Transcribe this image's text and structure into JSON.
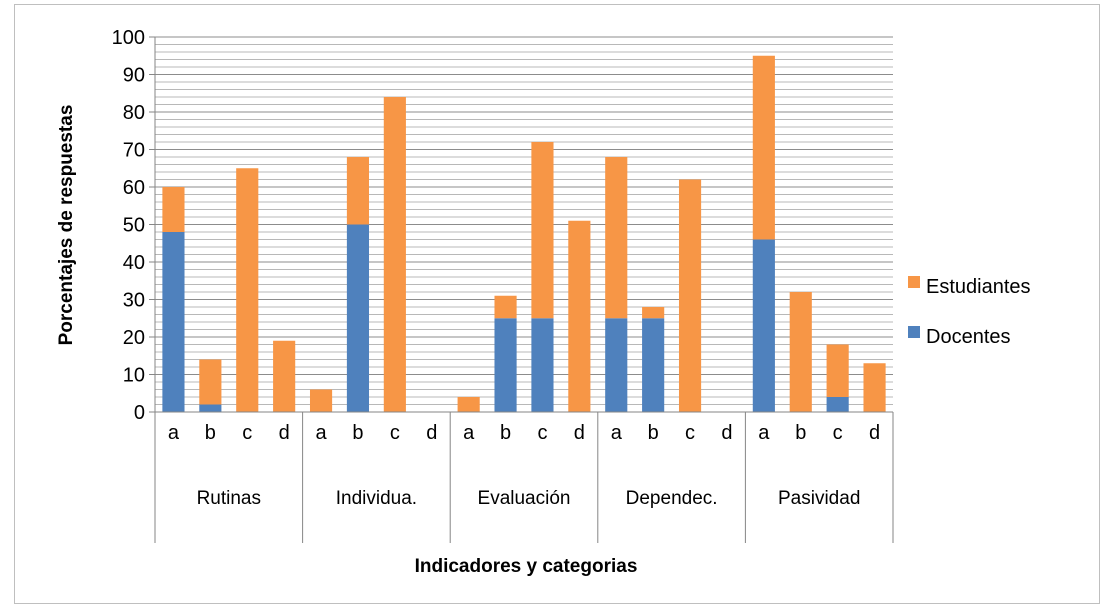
{
  "chart_data": {
    "type": "bar",
    "stacked": true,
    "title": "",
    "xlabel": "Indicadores y categorias",
    "ylabel": "Porcentajes de respuestas",
    "ylim": [
      0,
      100
    ],
    "yticks": [
      0,
      10,
      20,
      30,
      40,
      50,
      60,
      70,
      80,
      90,
      100
    ],
    "groups": [
      {
        "label": "Rutinas",
        "categories": [
          "a",
          "b",
          "c",
          "d"
        ]
      },
      {
        "label": "Individua.",
        "categories": [
          "a",
          "b",
          "c",
          "d"
        ]
      },
      {
        "label": "Evaluación",
        "categories": [
          "a",
          "b",
          "c",
          "d"
        ]
      },
      {
        "label": "Dependec.",
        "categories": [
          "a",
          "b",
          "c",
          "d"
        ]
      },
      {
        "label": "Pasividad",
        "categories": [
          "a",
          "b",
          "c",
          "d"
        ]
      }
    ],
    "series": [
      {
        "name": "Docentes",
        "color": "#4f81bd",
        "values": [
          48,
          2,
          0,
          0,
          0,
          50,
          0,
          0,
          0,
          25,
          25,
          0,
          25,
          25,
          0,
          0,
          46,
          0,
          4,
          0
        ]
      },
      {
        "name": "Estudiantes",
        "color": "#f79646",
        "values": [
          12,
          12,
          65,
          19,
          6,
          18,
          84,
          0,
          4,
          6,
          47,
          51,
          43,
          3,
          62,
          0,
          49,
          32,
          14,
          13
        ]
      }
    ],
    "legend_position": "right",
    "legend_order": [
      "Estudiantes",
      "Docentes"
    ],
    "grid": true
  }
}
